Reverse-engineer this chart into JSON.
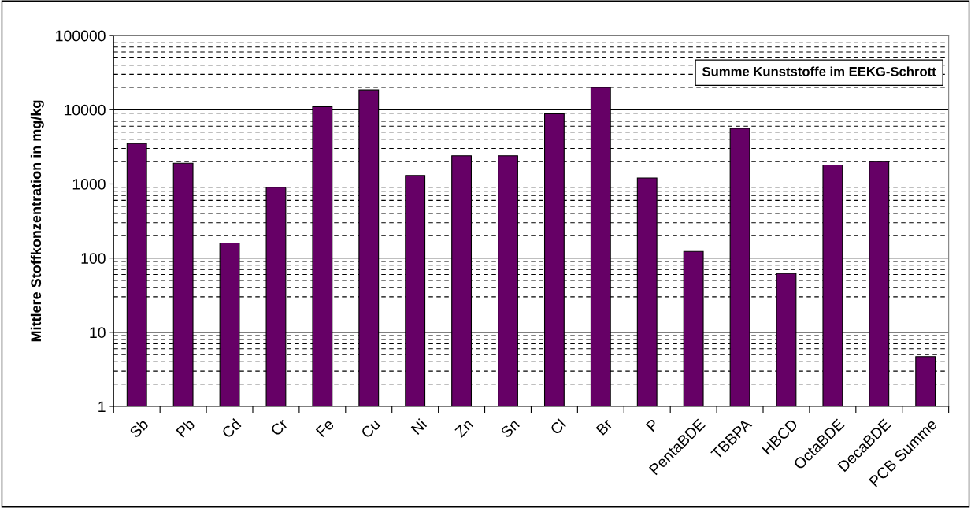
{
  "chart_data": {
    "type": "bar",
    "ylabel": "Mittlere Stoffkonzentration in mg/kg",
    "categories": [
      "Sb",
      "Pb",
      "Cd",
      "Cr",
      "Fe",
      "Cu",
      "Ni",
      "Zn",
      "Sn",
      "Cl",
      "Br",
      "P",
      "PentaBDE",
      "TBBPA",
      "HBCD",
      "OctaBDE",
      "DecaBDE",
      "PCB Summe"
    ],
    "values": [
      3500,
      1900,
      160,
      900,
      11000,
      18500,
      1300,
      2400,
      2400,
      8800,
      20000,
      1200,
      123,
      5600,
      62,
      1800,
      2000,
      4.7
    ],
    "color": "#660066",
    "log": true,
    "ylim": [
      1,
      100000
    ],
    "yticks": [
      1,
      10,
      100,
      1000,
      10000,
      100000
    ],
    "grid": "y",
    "annotations": [
      "Summe Kunststoffe im EEKG-Schrott"
    ]
  }
}
